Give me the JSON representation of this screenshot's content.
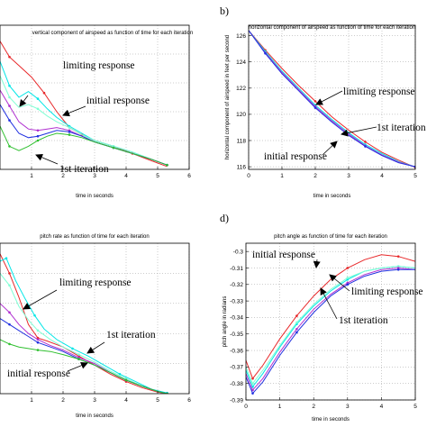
{
  "chart_data": [
    {
      "panel_label": "",
      "type": "line",
      "title": "vertical component of airspeed as function of time for each iteration",
      "xlabel": "time in seconds",
      "ylabel": "",
      "xlim": [
        0,
        6
      ],
      "ylim": [
        0,
        10
      ],
      "xticks": [
        "1",
        "2",
        "3",
        "4",
        "5",
        "6"
      ],
      "yticks": [],
      "grid": true,
      "annotations": [
        "limiting response",
        "initial response",
        "1st iteration"
      ],
      "series": [
        {
          "color": "#e8282a",
          "x": [
            0,
            0.3,
            0.6,
            1.0,
            1.4,
            1.8,
            2.2,
            2.6,
            3.0,
            3.6,
            4.2,
            4.8,
            5.3
          ],
          "y": [
            8.9,
            7.8,
            7.2,
            6.4,
            5.3,
            4.0,
            2.9,
            2.4,
            2.0,
            1.6,
            1.1,
            0.6,
            0.2
          ]
        },
        {
          "color": "#00e6e6",
          "x": [
            0,
            0.3,
            0.6,
            0.9,
            1.2,
            1.5,
            1.8,
            2.2,
            2.6,
            3.0,
            3.6,
            4.2,
            4.8,
            5.3
          ],
          "y": [
            7.5,
            5.8,
            5.0,
            5.4,
            4.9,
            4.2,
            3.6,
            3.0,
            2.5,
            2.0,
            1.6,
            1.2,
            0.7,
            0.3
          ]
        },
        {
          "color": "#7fffd4",
          "x": [
            0,
            0.3,
            0.6,
            0.9,
            1.2,
            1.5,
            1.8,
            2.2,
            2.6,
            3.0,
            3.6,
            4.2,
            4.8,
            5.3
          ],
          "y": [
            6.5,
            5.0,
            4.3,
            4.5,
            4.2,
            3.7,
            3.3,
            2.9,
            2.4,
            2.0,
            1.6,
            1.2,
            0.7,
            0.3
          ]
        },
        {
          "color": "#b030d0",
          "x": [
            0,
            0.3,
            0.6,
            0.9,
            1.2,
            1.5,
            1.8,
            2.2,
            2.6,
            3.0,
            3.6,
            4.2,
            4.8,
            5.3
          ],
          "y": [
            5.5,
            4.4,
            3.3,
            2.8,
            2.7,
            2.8,
            2.9,
            2.7,
            2.3,
            1.9,
            1.5,
            1.1,
            0.7,
            0.3
          ]
        },
        {
          "color": "#2030e0",
          "x": [
            0,
            0.3,
            0.6,
            0.9,
            1.2,
            1.5,
            1.8,
            2.2,
            2.6,
            3.0,
            3.6,
            4.2,
            4.8,
            5.3
          ],
          "y": [
            4.5,
            3.4,
            2.5,
            2.2,
            2.3,
            2.5,
            2.7,
            2.6,
            2.3,
            1.9,
            1.5,
            1.1,
            0.7,
            0.3
          ]
        },
        {
          "color": "#30c030",
          "x": [
            0,
            0.3,
            0.6,
            0.9,
            1.2,
            1.5,
            1.8,
            2.2,
            2.6,
            3.0,
            3.6,
            4.2,
            4.8,
            5.3
          ],
          "y": [
            3.0,
            1.6,
            1.3,
            1.6,
            2.0,
            2.3,
            2.5,
            2.4,
            2.2,
            1.9,
            1.5,
            1.1,
            0.7,
            0.3
          ]
        }
      ]
    },
    {
      "panel_label": "b)",
      "type": "line",
      "title": "horizontal component of airspeed as function of time for each iteration",
      "xlabel": "time in seconds",
      "ylabel": "horizontal component of airspeed in feet per second",
      "xlim": [
        0,
        5
      ],
      "ylim": [
        115.8,
        126.8
      ],
      "xticks": [
        "0",
        "1",
        "2",
        "3",
        "4",
        "5"
      ],
      "yticks": [
        "116",
        "118",
        "120",
        "122",
        "124",
        "126"
      ],
      "grid": true,
      "annotations": [
        "limiting response",
        "1st iteration",
        "initial response"
      ],
      "series": [
        {
          "color": "#e8282a",
          "x": [
            0,
            0.5,
            1,
            1.5,
            2,
            2.5,
            3,
            3.5,
            4,
            4.5,
            5
          ],
          "y": [
            126.4,
            124.9,
            123.5,
            122.2,
            121.0,
            119.8,
            118.8,
            117.9,
            117.1,
            116.5,
            115.95
          ]
        },
        {
          "color": "#00e6e6",
          "x": [
            0,
            0.5,
            1,
            1.5,
            2,
            2.5,
            3,
            3.5,
            4,
            4.5,
            5
          ],
          "y": [
            126.4,
            124.8,
            123.3,
            122.0,
            120.7,
            119.6,
            118.6,
            117.7,
            117.0,
            116.4,
            116.0
          ]
        },
        {
          "color": "#b030d0",
          "x": [
            0,
            0.5,
            1,
            1.5,
            2,
            2.5,
            3,
            3.5,
            4,
            4.5,
            5
          ],
          "y": [
            126.4,
            124.7,
            123.2,
            121.9,
            120.6,
            119.5,
            118.5,
            117.6,
            116.9,
            116.35,
            116.0
          ]
        },
        {
          "color": "#2030e0",
          "x": [
            0,
            0.5,
            1,
            1.5,
            2,
            2.5,
            3,
            3.5,
            4,
            4.5,
            5
          ],
          "y": [
            126.4,
            124.65,
            123.1,
            121.8,
            120.5,
            119.4,
            118.4,
            117.55,
            116.85,
            116.3,
            116.0
          ]
        }
      ]
    },
    {
      "panel_label": "",
      "type": "line",
      "title": "pitch rate as function of time for each iteration",
      "xlabel": "time in seconds",
      "ylabel": "",
      "xlim": [
        0,
        6
      ],
      "ylim": [
        0,
        10
      ],
      "xticks": [
        "1",
        "2",
        "3",
        "4",
        "5",
        "6"
      ],
      "yticks": [],
      "grid": true,
      "annotations": [
        "limiting response",
        "1st iteration",
        "initial response"
      ],
      "series": [
        {
          "color": "#e8282a",
          "x": [
            0,
            0.3,
            0.6,
            0.9,
            1.2,
            1.5,
            2.0,
            2.5,
            3.0,
            3.5,
            4.0,
            4.5,
            5.0,
            5.3
          ],
          "y": [
            9.3,
            8.0,
            6.4,
            4.6,
            3.7,
            3.5,
            3.1,
            2.5,
            1.9,
            1.3,
            0.8,
            0.4,
            0.1,
            0.0
          ]
        },
        {
          "color": "#00e6e6",
          "x": [
            0,
            0.2,
            0.5,
            0.8,
            1.1,
            1.4,
            1.8,
            2.3,
            2.8,
            3.3,
            3.8,
            4.3,
            4.8,
            5.3
          ],
          "y": [
            8.8,
            9.0,
            7.5,
            6.3,
            5.2,
            4.3,
            3.6,
            3.0,
            2.5,
            1.9,
            1.3,
            0.8,
            0.3,
            0.05
          ]
        },
        {
          "color": "#7fffd4",
          "x": [
            0,
            0.3,
            0.6,
            0.9,
            1.2,
            1.6,
            2.0,
            2.5,
            3.0,
            3.5,
            4.0,
            4.5,
            5.0,
            5.3
          ],
          "y": [
            8.0,
            7.2,
            5.8,
            4.9,
            4.2,
            3.6,
            3.1,
            2.6,
            2.1,
            1.5,
            1.0,
            0.5,
            0.15,
            0.0
          ]
        },
        {
          "color": "#b030d0",
          "x": [
            0,
            0.3,
            0.6,
            0.9,
            1.2,
            1.6,
            2.0,
            2.5,
            3.0,
            3.5,
            4.0,
            4.5,
            5.0,
            5.3
          ],
          "y": [
            6.0,
            5.4,
            4.6,
            4.0,
            3.6,
            3.2,
            2.9,
            2.4,
            2.0,
            1.4,
            0.9,
            0.5,
            0.15,
            0.0
          ]
        },
        {
          "color": "#2030e0",
          "x": [
            0,
            0.3,
            0.6,
            0.9,
            1.2,
            1.6,
            2.0,
            2.5,
            3.0,
            3.5,
            4.0,
            4.5,
            5.0,
            5.3
          ],
          "y": [
            5.0,
            4.6,
            4.2,
            3.8,
            3.4,
            3.1,
            2.8,
            2.3,
            1.9,
            1.4,
            0.9,
            0.5,
            0.15,
            0.0
          ]
        },
        {
          "color": "#30c030",
          "x": [
            0,
            0.3,
            0.6,
            0.9,
            1.2,
            1.6,
            2.0,
            2.5,
            3.0,
            3.5,
            4.0,
            4.5,
            5.0,
            5.3
          ],
          "y": [
            3.6,
            3.3,
            3.1,
            3.0,
            2.9,
            2.8,
            2.6,
            2.3,
            1.9,
            1.4,
            0.9,
            0.5,
            0.15,
            0.0
          ]
        }
      ]
    },
    {
      "panel_label": "d)",
      "type": "line",
      "title": "pitch angle as function of time for each iteration",
      "xlabel": "time in seconds",
      "ylabel": "pitch angle in radians",
      "xlim": [
        0,
        5
      ],
      "ylim": [
        -0.39,
        -0.295
      ],
      "xticks": [
        "0",
        "1",
        "2",
        "3",
        "4",
        "5"
      ],
      "yticks": [
        "-0.3",
        "-0.31",
        "-0.32",
        "-0.33",
        "-0.34",
        "-0.35",
        "-0.36",
        "-0.37",
        "-0.38",
        "-0.39"
      ],
      "grid": true,
      "annotations": [
        "initial response",
        "limiting response",
        "1st iteration"
      ],
      "series": [
        {
          "color": "#e8282a",
          "x": [
            0,
            0.2,
            0.5,
            1.0,
            1.5,
            2.0,
            2.5,
            3.0,
            3.5,
            4.0,
            4.5,
            5.0
          ],
          "y": [
            -0.366,
            -0.377,
            -0.369,
            -0.353,
            -0.339,
            -0.327,
            -0.317,
            -0.31,
            -0.305,
            -0.302,
            -0.303,
            -0.306
          ]
        },
        {
          "color": "#00e6e6",
          "x": [
            0,
            0.2,
            0.5,
            1.0,
            1.5,
            2.0,
            2.5,
            3.0,
            3.5,
            4.0,
            4.5,
            5.0
          ],
          "y": [
            -0.372,
            -0.382,
            -0.374,
            -0.358,
            -0.344,
            -0.333,
            -0.324,
            -0.317,
            -0.312,
            -0.31,
            -0.309,
            -0.31
          ]
        },
        {
          "color": "#7fffd4",
          "x": [
            0,
            0.2,
            0.5,
            1.0,
            1.5,
            2.0,
            2.5,
            3.0,
            3.5,
            4.0,
            4.5,
            5.0
          ],
          "y": [
            -0.37,
            -0.38,
            -0.372,
            -0.357,
            -0.343,
            -0.332,
            -0.323,
            -0.316,
            -0.312,
            -0.31,
            -0.309,
            -0.31
          ]
        },
        {
          "color": "#b030d0",
          "x": [
            0,
            0.2,
            0.5,
            1.0,
            1.5,
            2.0,
            2.5,
            3.0,
            3.5,
            4.0,
            4.5,
            5.0
          ],
          "y": [
            -0.374,
            -0.384,
            -0.377,
            -0.361,
            -0.347,
            -0.335,
            -0.326,
            -0.319,
            -0.314,
            -0.311,
            -0.31,
            -0.311
          ]
        },
        {
          "color": "#2030e0",
          "x": [
            0,
            0.2,
            0.5,
            1.0,
            1.5,
            2.0,
            2.5,
            3.0,
            3.5,
            4.0,
            4.5,
            5.0
          ],
          "y": [
            -0.376,
            -0.386,
            -0.379,
            -0.363,
            -0.349,
            -0.337,
            -0.327,
            -0.32,
            -0.315,
            -0.312,
            -0.311,
            -0.311
          ]
        }
      ]
    }
  ]
}
